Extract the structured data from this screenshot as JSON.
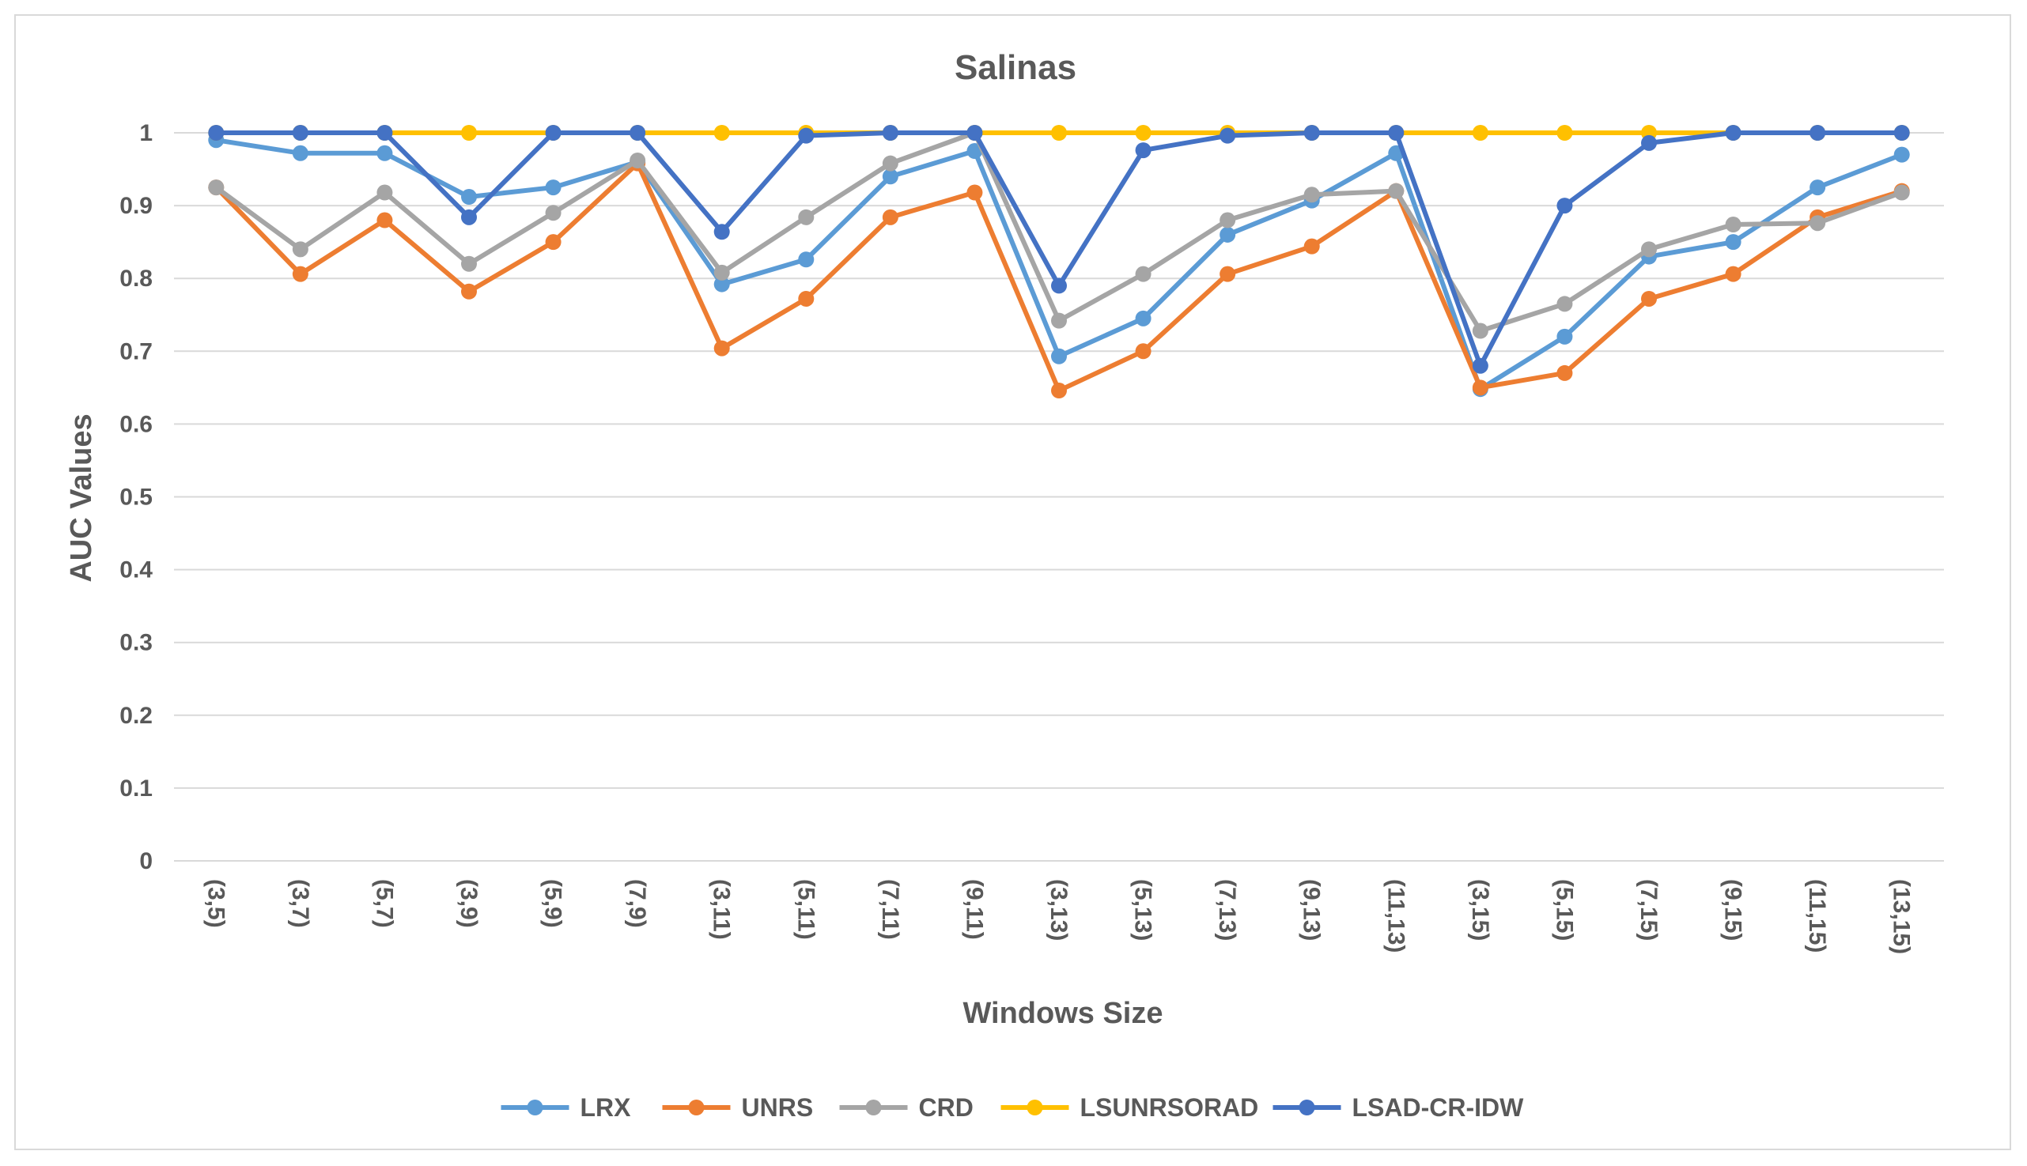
{
  "chart_data": {
    "type": "line",
    "title": "Salinas",
    "xlabel": "Windows Size",
    "ylabel": "AUC Values",
    "ylim": [
      0,
      1
    ],
    "yticks": [
      "0",
      "0.1",
      "0.2",
      "0.3",
      "0.4",
      "0.5",
      "0.6",
      "0.7",
      "0.8",
      "0.9",
      "1"
    ],
    "grid": true,
    "legend_position": "bottom",
    "categories": [
      "(3,5)",
      "(3,7)",
      "(5,7)",
      "(3,9)",
      "(5,9)",
      "(7,9)",
      "(3,11)",
      "(5,11)",
      "(7,11)",
      "(9,11)",
      "(3,13)",
      "(5,13)",
      "(7,13)",
      "(9,13)",
      "(11,13)",
      "(3,15)",
      "(5,15)",
      "(7,15)",
      "(9,15)",
      "(11,15)",
      "(13,15)"
    ],
    "series": [
      {
        "name": "LRX",
        "color": "#5B9BD5",
        "values": [
          0.99,
          0.972,
          0.972,
          0.912,
          0.925,
          0.96,
          0.792,
          0.826,
          0.94,
          0.975,
          0.693,
          0.745,
          0.86,
          0.907,
          0.972,
          0.648,
          0.72,
          0.83,
          0.85,
          0.925,
          0.97
        ]
      },
      {
        "name": "UNRS",
        "color": "#ED7D31",
        "values": [
          0.925,
          0.806,
          0.88,
          0.782,
          0.85,
          0.958,
          0.704,
          0.772,
          0.884,
          0.918,
          0.646,
          0.7,
          0.806,
          0.844,
          0.92,
          0.65,
          0.67,
          0.772,
          0.806,
          0.884,
          0.92
        ]
      },
      {
        "name": "CRD",
        "color": "#A5A5A5",
        "values": [
          0.925,
          0.84,
          0.918,
          0.82,
          0.89,
          0.962,
          0.808,
          0.884,
          0.958,
          1.0,
          0.742,
          0.806,
          0.88,
          0.915,
          0.92,
          0.728,
          0.765,
          0.84,
          0.874,
          0.876,
          0.918
        ]
      },
      {
        "name": "LSUNRSORAD",
        "color": "#FFC000",
        "values": [
          1,
          1,
          1,
          1,
          1,
          1,
          1,
          1,
          1,
          1,
          1,
          1,
          1,
          1,
          1,
          1,
          1,
          1,
          1,
          1,
          1
        ]
      },
      {
        "name": "LSAD-CR-IDW",
        "color": "#4472C4",
        "values": [
          1.0,
          1.0,
          1.0,
          0.884,
          1.0,
          1.0,
          0.864,
          0.996,
          1.0,
          1.0,
          0.79,
          0.976,
          0.996,
          1.0,
          1.0,
          0.68,
          0.9,
          0.986,
          1.0,
          1.0,
          1.0
        ]
      }
    ]
  }
}
